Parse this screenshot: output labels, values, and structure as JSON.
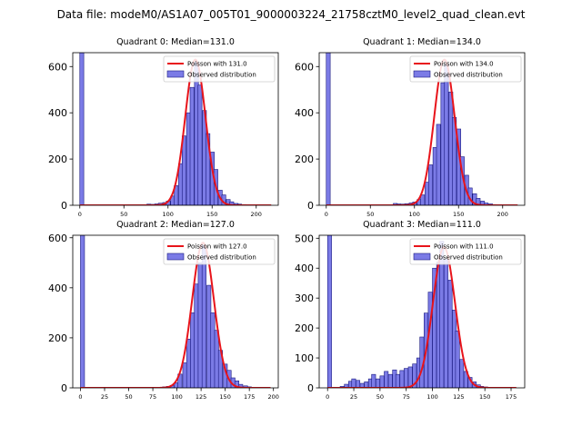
{
  "figure": {
    "suptitle": "Data file: modeM0/AS1A07_005T01_9000003224_21758cztM0_level2_quad_clean.evt"
  },
  "colors": {
    "bar_fill": "#7b7be6",
    "bar_edge": "#1a1a80",
    "poisson_line": "#e8141b",
    "axis": "#000000"
  },
  "chart_data": [
    {
      "type": "bar",
      "title": "Quadrant 0: Median=131.0",
      "xlim": [
        -8,
        225
      ],
      "ylim": [
        0,
        660
      ],
      "xticks": [
        0,
        50,
        100,
        150,
        200
      ],
      "yticks": [
        0,
        200,
        400,
        600
      ],
      "legend": {
        "position": "top-right",
        "poisson_label": "Poisson with 131.0",
        "observed_label": "Observed distribution"
      },
      "bin_width": 4.5,
      "bins": [
        [
          0,
          1400
        ],
        [
          76,
          5
        ],
        [
          80,
          4
        ],
        [
          85,
          6
        ],
        [
          89,
          9
        ],
        [
          94,
          12
        ],
        [
          98,
          18
        ],
        [
          103,
          40
        ],
        [
          107,
          85
        ],
        [
          112,
          180
        ],
        [
          116,
          300
        ],
        [
          121,
          400
        ],
        [
          125,
          510
        ],
        [
          130,
          620
        ],
        [
          134,
          520
        ],
        [
          139,
          410
        ],
        [
          143,
          310
        ],
        [
          148,
          230
        ],
        [
          152,
          155
        ],
        [
          157,
          65
        ],
        [
          161,
          45
        ],
        [
          166,
          25
        ],
        [
          170,
          15
        ],
        [
          175,
          8
        ],
        [
          179,
          5
        ],
        [
          184,
          3
        ]
      ],
      "poisson": {
        "mean": 131.0,
        "peak": 630,
        "sigma": 11.5
      }
    },
    {
      "type": "bar",
      "title": "Quadrant 1: Median=134.0",
      "xlim": [
        -8,
        225
      ],
      "ylim": [
        0,
        660
      ],
      "xticks": [
        0,
        50,
        100,
        150,
        200
      ],
      "yticks": [
        0,
        200,
        400,
        600
      ],
      "legend": {
        "position": "top-right",
        "poisson_label": "Poisson with 134.0",
        "observed_label": "Observed distribution"
      },
      "bin_width": 4.5,
      "bins": [
        [
          0,
          1400
        ],
        [
          76,
          8
        ],
        [
          80,
          6
        ],
        [
          85,
          5
        ],
        [
          89,
          7
        ],
        [
          94,
          10
        ],
        [
          98,
          14
        ],
        [
          103,
          25
        ],
        [
          107,
          45
        ],
        [
          112,
          100
        ],
        [
          116,
          175
        ],
        [
          121,
          250
        ],
        [
          125,
          350
        ],
        [
          130,
          530
        ],
        [
          134,
          610
        ],
        [
          139,
          490
        ],
        [
          143,
          380
        ],
        [
          148,
          330
        ],
        [
          152,
          210
        ],
        [
          157,
          130
        ],
        [
          161,
          75
        ],
        [
          166,
          50
        ],
        [
          170,
          30
        ],
        [
          175,
          18
        ],
        [
          179,
          10
        ],
        [
          184,
          6
        ],
        [
          188,
          3
        ]
      ],
      "poisson": {
        "mean": 134.0,
        "peak": 630,
        "sigma": 11.6
      }
    },
    {
      "type": "bar",
      "title": "Quadrant 2: Median=127.0",
      "xlim": [
        -8,
        205
      ],
      "ylim": [
        0,
        610
      ],
      "xticks": [
        0,
        25,
        50,
        75,
        100,
        125,
        150,
        175,
        200
      ],
      "yticks": [
        0,
        200,
        400,
        600
      ],
      "legend": {
        "position": "top-right",
        "poisson_label": "Poisson with 127.0",
        "observed_label": "Observed distribution"
      },
      "bin_width": 4.2,
      "bins": [
        [
          0,
          1400
        ],
        [
          85,
          4
        ],
        [
          89,
          6
        ],
        [
          93,
          10
        ],
        [
          97,
          20
        ],
        [
          101,
          55
        ],
        [
          106,
          100
        ],
        [
          110,
          195
        ],
        [
          114,
          300
        ],
        [
          118,
          415
        ],
        [
          122,
          500
        ],
        [
          126,
          570
        ],
        [
          131,
          410
        ],
        [
          135,
          300
        ],
        [
          139,
          230
        ],
        [
          143,
          150
        ],
        [
          148,
          95
        ],
        [
          152,
          70
        ],
        [
          156,
          40
        ],
        [
          160,
          28
        ],
        [
          164,
          14
        ],
        [
          169,
          8
        ],
        [
          173,
          4
        ]
      ],
      "poisson": {
        "mean": 127.0,
        "peak": 580,
        "sigma": 11.3
      }
    },
    {
      "type": "bar",
      "title": "Quadrant 3: Median=111.0",
      "xlim": [
        -8,
        188
      ],
      "ylim": [
        0,
        510
      ],
      "xticks": [
        0,
        25,
        50,
        75,
        100,
        125,
        150,
        175
      ],
      "yticks": [
        0,
        100,
        200,
        300,
        400,
        500
      ],
      "legend": {
        "position": "top-right",
        "poisson_label": "Poisson with 111.0",
        "observed_label": "Observed distribution"
      },
      "bin_width": 3.8,
      "bins": [
        [
          0,
          1400
        ],
        [
          12,
          5
        ],
        [
          16,
          12
        ],
        [
          20,
          22
        ],
        [
          23,
          30
        ],
        [
          27,
          25
        ],
        [
          31,
          15
        ],
        [
          35,
          20
        ],
        [
          39,
          30
        ],
        [
          42,
          45
        ],
        [
          46,
          30
        ],
        [
          50,
          40
        ],
        [
          54,
          55
        ],
        [
          58,
          45
        ],
        [
          62,
          60
        ],
        [
          65,
          45
        ],
        [
          69,
          58
        ],
        [
          73,
          65
        ],
        [
          77,
          70
        ],
        [
          81,
          80
        ],
        [
          85,
          100
        ],
        [
          88,
          170
        ],
        [
          92,
          250
        ],
        [
          96,
          320
        ],
        [
          100,
          400
        ],
        [
          104,
          420
        ],
        [
          107,
          490
        ],
        [
          111,
          430
        ],
        [
          115,
          360
        ],
        [
          119,
          260
        ],
        [
          122,
          190
        ],
        [
          126,
          95
        ],
        [
          130,
          55
        ],
        [
          134,
          35
        ],
        [
          138,
          20
        ],
        [
          142,
          10
        ],
        [
          145,
          5
        ],
        [
          149,
          3
        ]
      ],
      "poisson": {
        "mean": 111.0,
        "peak": 470,
        "sigma": 10.5
      }
    }
  ]
}
